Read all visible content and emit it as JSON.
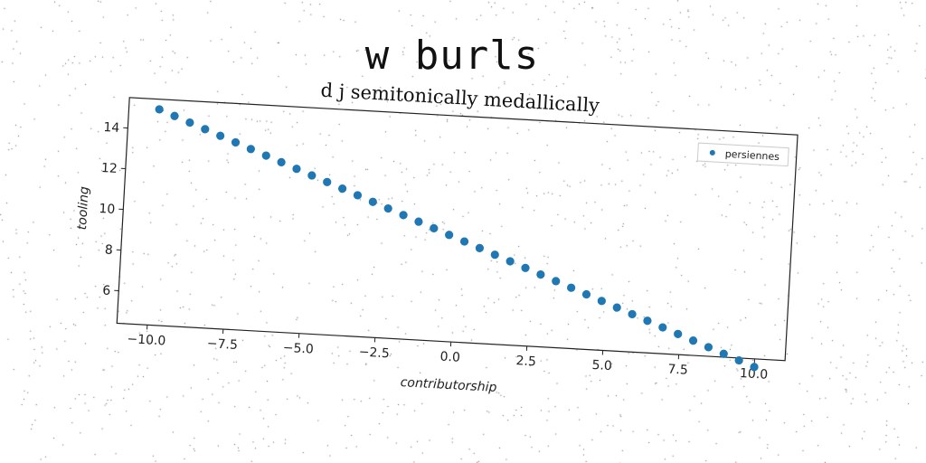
{
  "title": "w burls",
  "chart_data": {
    "type": "scatter",
    "subtitle": "d j semitonically medallically",
    "xlabel": "contributorship",
    "ylabel": "tooling",
    "xlim": [
      -11,
      11
    ],
    "ylim": [
      4.4,
      15.5
    ],
    "xticks": [
      -10.0,
      -7.5,
      -5.0,
      -2.5,
      0.0,
      2.5,
      5.0,
      7.5,
      10.0
    ],
    "xtick_labels": [
      "−10.0",
      "−7.5",
      "−5.0",
      "−2.5",
      "0.0",
      "2.5",
      "5.0",
      "7.5",
      "10.0"
    ],
    "yticks": [
      6,
      8,
      10,
      12,
      14
    ],
    "ytick_labels": [
      "6",
      "8",
      "10",
      "12",
      "14"
    ],
    "grid": false,
    "legend_position": "top-right",
    "series": [
      {
        "name": "persiennes",
        "color": "#1f77b4",
        "marker": "circle",
        "x_start": -10,
        "x_end": 10,
        "count": 40,
        "y_start": 15,
        "y_end": 4
      }
    ]
  }
}
